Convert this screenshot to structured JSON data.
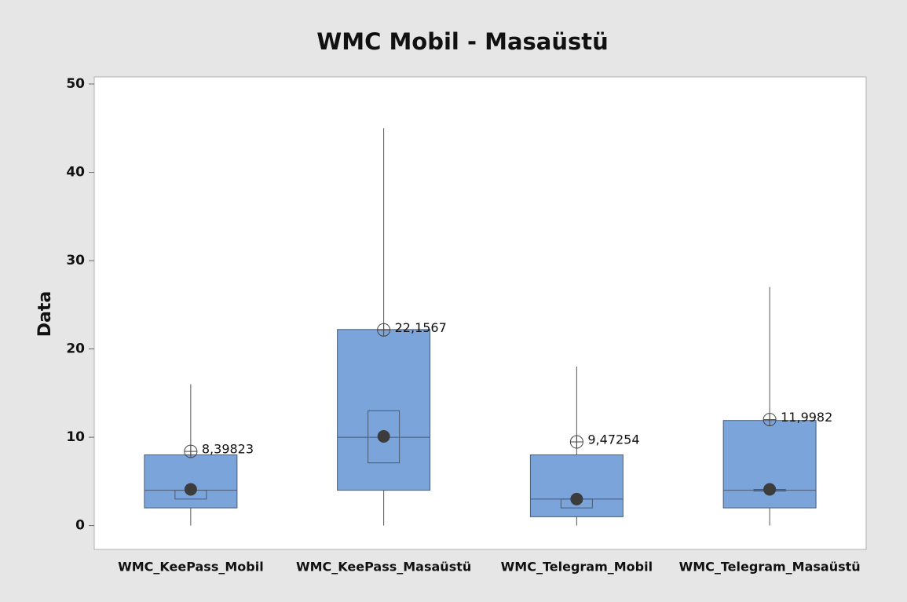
{
  "chart_data": {
    "type": "box",
    "title": "WMC Mobil - Masaüstü",
    "y_label": "Data",
    "categories": [
      "WMC_KeePass_Mobil",
      "WMC_KeePass_Masaüstü",
      "WMC_Telegram_Mobil",
      "WMC_Telegram_Masaüstü"
    ],
    "boxes": [
      {
        "whisker_low": 0,
        "q1": 2,
        "median": 4,
        "q3": 8,
        "whisker_high": 16,
        "median_ci_low": 3,
        "median_ci_high": 4,
        "dot": 4.1,
        "mean": 8.39823
      },
      {
        "whisker_low": 0,
        "q1": 4,
        "median": 10,
        "q3": 22.2,
        "whisker_high": 45,
        "median_ci_low": 7.1,
        "median_ci_high": 13,
        "dot": 10.1,
        "mean": 22.1567
      },
      {
        "whisker_low": 0,
        "q1": 1,
        "median": 3,
        "q3": 8,
        "whisker_high": 18,
        "median_ci_low": 2,
        "median_ci_high": 3,
        "dot": 3,
        "mean": 9.47254
      },
      {
        "whisker_low": 0,
        "q1": 2,
        "median": 4,
        "q3": 11.9,
        "whisker_high": 27,
        "median_ci_low": 3.9,
        "median_ci_high": 4.1,
        "dot": 4.1,
        "mean": 11.9982
      }
    ],
    "mean_labels": [
      "8,39823",
      "22,1567",
      "9,47254",
      "11,9982"
    ],
    "color": "#7ba5da",
    "ylim": [
      -2.7,
      50.8
    ],
    "yticks": [
      0,
      10,
      20,
      30,
      40,
      50
    ]
  }
}
